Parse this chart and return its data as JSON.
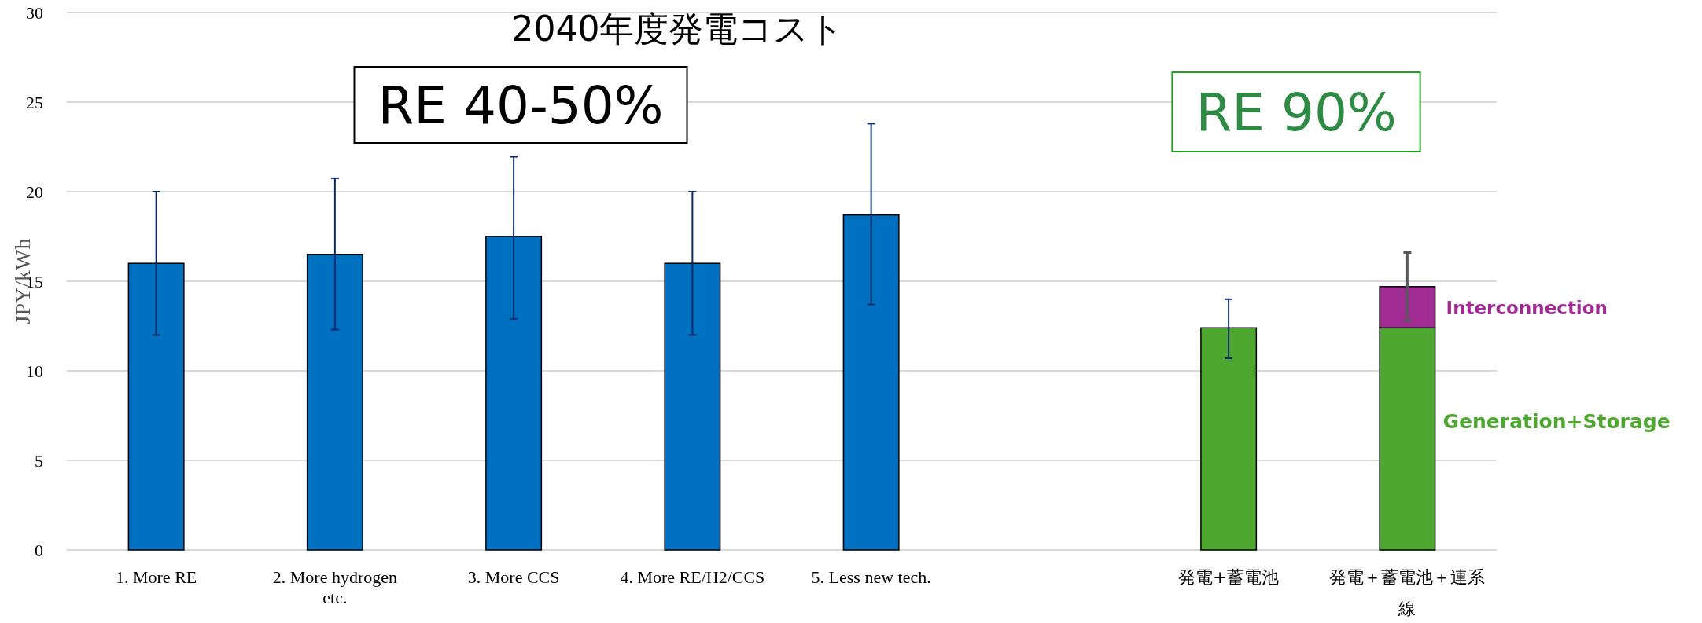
{
  "chart_data": {
    "type": "bar",
    "title": "2040年度発電コスト",
    "ylabel": "JPY/kWh",
    "categories": [
      "1. More RE",
      "2. More hydrogen etc.",
      "3. More CCS",
      "4. More RE/H2/CCS",
      "5. Less new tech.",
      null,
      "発電+蓄電池",
      "発電＋蓄電池＋連系線"
    ],
    "stacked": true,
    "series": [
      {
        "color": "#0070c0",
        "values": [
          16,
          16.5,
          17.5,
          16,
          18.7,
          null,
          null,
          null
        ],
        "errors": [
          [
            12,
            20
          ],
          [
            12.3,
            20.75
          ],
          [
            12.9,
            21.95
          ],
          [
            12,
            20
          ],
          [
            13.7,
            23.8
          ],
          null,
          null,
          null
        ]
      },
      {
        "name": "Generation+Storage",
        "color": "#4ea72e",
        "values": [
          null,
          null,
          null,
          null,
          null,
          null,
          12.4,
          12.4
        ],
        "errors": [
          null,
          null,
          null,
          null,
          null,
          null,
          [
            10.7,
            14
          ],
          null
        ]
      },
      {
        "name": "Interconnection",
        "color": "#a02b93",
        "values": [
          null,
          null,
          null,
          null,
          null,
          null,
          null,
          2.3
        ],
        "errors": [
          null,
          null,
          null,
          null,
          null,
          null,
          null,
          [
            12.8,
            16.6
          ]
        ]
      }
    ],
    "ylim": [
      0,
      30
    ],
    "yticks": [
      0,
      5,
      10,
      15,
      20,
      25,
      30
    ],
    "grid": "y",
    "annotations": [
      "RE 40-50%",
      "RE 90%"
    ]
  }
}
